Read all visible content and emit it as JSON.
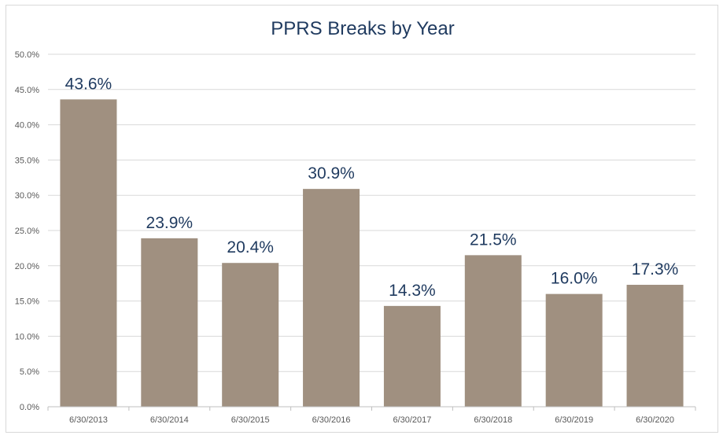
{
  "chart_data": {
    "type": "bar",
    "title": "PPRS Breaks by Year",
    "categories": [
      "6/30/2013",
      "6/30/2014",
      "6/30/2015",
      "6/30/2016",
      "6/30/2017",
      "6/30/2018",
      "6/30/2019",
      "6/30/2020"
    ],
    "values": [
      43.6,
      23.9,
      20.4,
      30.9,
      14.3,
      21.5,
      16.0,
      17.3
    ],
    "data_labels": [
      "43.6%",
      "23.9%",
      "20.4%",
      "30.9%",
      "14.3%",
      "21.5%",
      "16.0%",
      "17.3%"
    ],
    "y_ticks": [
      "0.0%",
      "5.0%",
      "10.0%",
      "15.0%",
      "20.0%",
      "25.0%",
      "30.0%",
      "35.0%",
      "40.0%",
      "45.0%",
      "50.0%"
    ],
    "ylim": [
      0,
      50
    ],
    "y_unit": "%",
    "xlabel": "",
    "ylabel": "",
    "grid": true,
    "legend": "none",
    "bar_color": "#a09080",
    "label_color": "#1f3a5f"
  }
}
